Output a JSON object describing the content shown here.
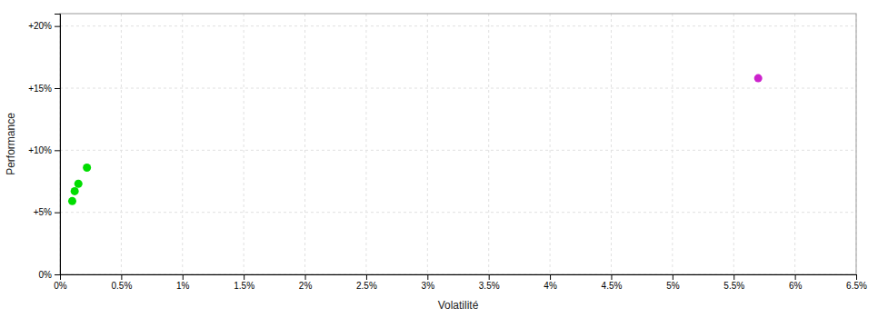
{
  "chart_data": {
    "type": "scatter",
    "x_label": "Volatilité",
    "y_label": "Performance",
    "xlim": [
      0,
      0.065
    ],
    "ylim": [
      0,
      0.21
    ],
    "xticks": [
      {
        "value": 0.0,
        "label": "0%"
      },
      {
        "value": 0.005,
        "label": "0.5%"
      },
      {
        "value": 0.01,
        "label": "1%"
      },
      {
        "value": 0.015,
        "label": "1.5%"
      },
      {
        "value": 0.02,
        "label": "2%"
      },
      {
        "value": 0.025,
        "label": "2.5%"
      },
      {
        "value": 0.03,
        "label": "3%"
      },
      {
        "value": 0.035,
        "label": "3.5%"
      },
      {
        "value": 0.04,
        "label": "4%"
      },
      {
        "value": 0.045,
        "label": "4.5%"
      },
      {
        "value": 0.05,
        "label": "5%"
      },
      {
        "value": 0.055,
        "label": "5.5%"
      },
      {
        "value": 0.06,
        "label": "6%"
      },
      {
        "value": 0.065,
        "label": "6.5%"
      }
    ],
    "yticks": [
      {
        "value": 0.0,
        "label": "0%"
      },
      {
        "value": 0.05,
        "label": "+5%"
      },
      {
        "value": 0.1,
        "label": "+10%"
      },
      {
        "value": 0.15,
        "label": "+15%"
      },
      {
        "value": 0.2,
        "label": "+20%"
      }
    ],
    "grid": true,
    "series": [
      {
        "color": "#00dd00",
        "x": [
          0.0022,
          0.0015,
          0.0012,
          0.001
        ],
        "values": [
          0.086,
          0.073,
          0.067,
          0.059
        ]
      },
      {
        "color": "#cc22cc",
        "x": [
          0.057
        ],
        "values": [
          0.158
        ]
      }
    ]
  }
}
